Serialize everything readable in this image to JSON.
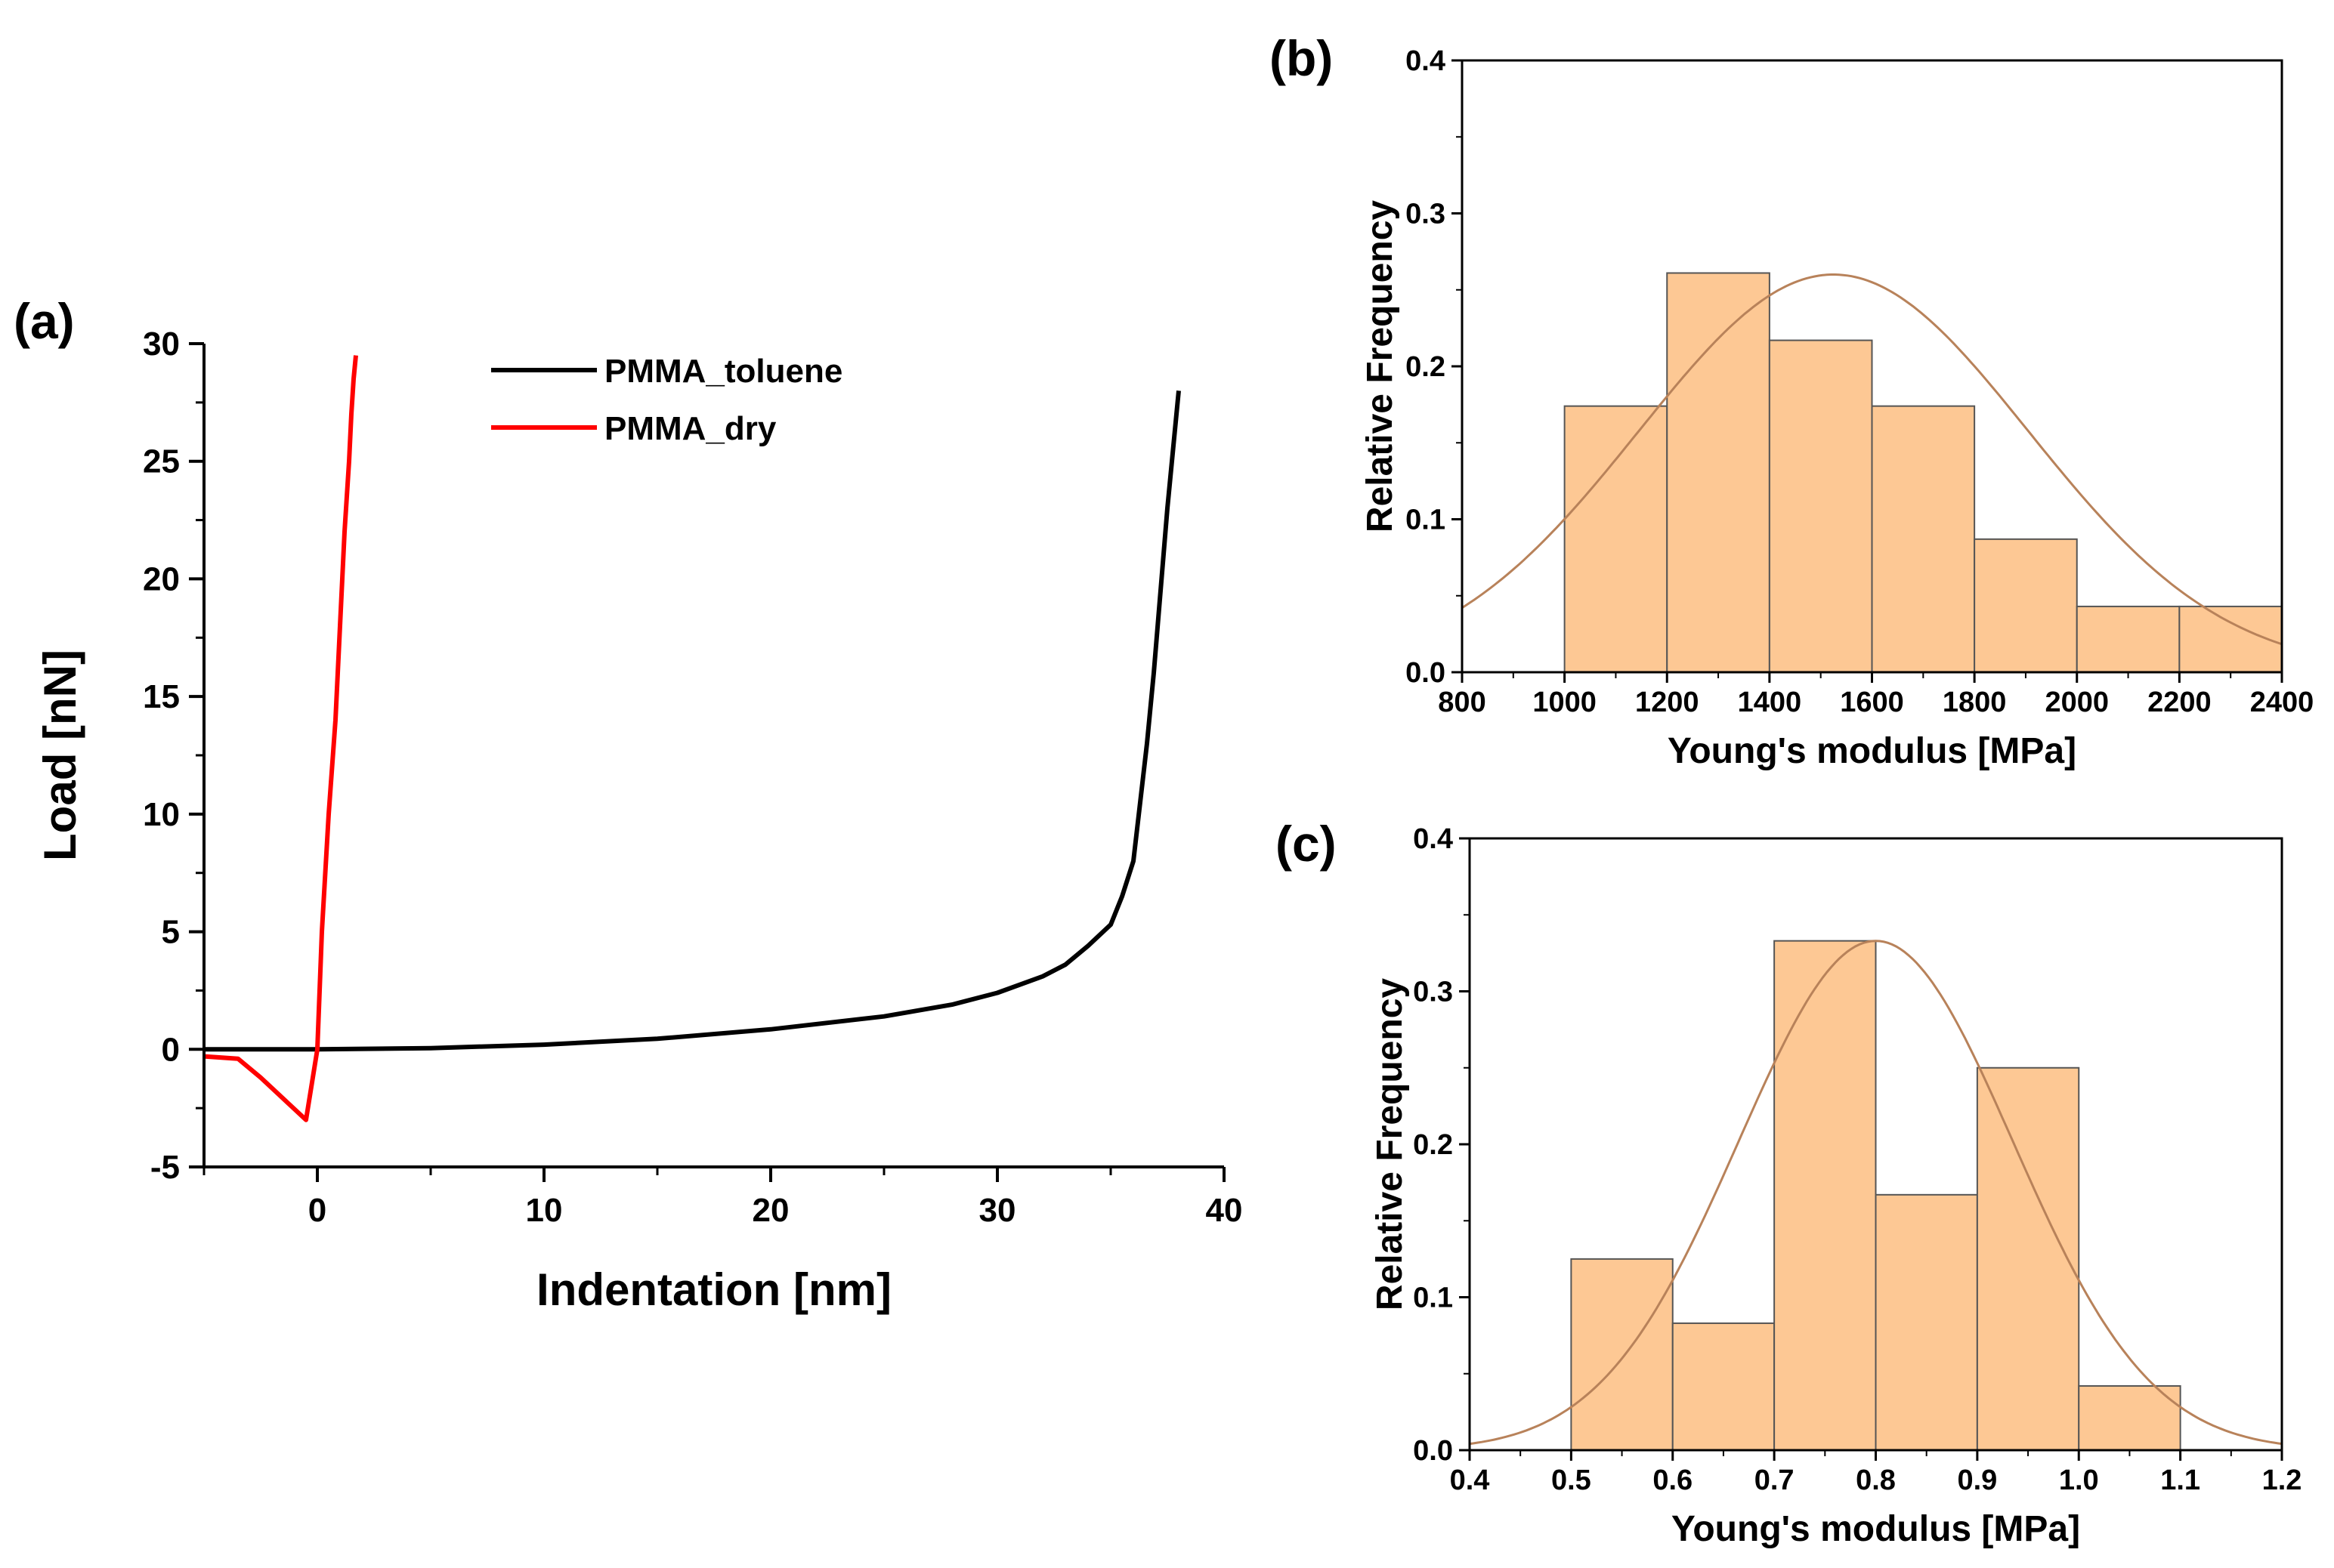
{
  "chart_data": [
    {
      "panel": "(a)",
      "type": "line",
      "title": "",
      "xlabel": "Indentation [nm]",
      "ylabel": "Load [nN]",
      "xlim": [
        -5,
        40
      ],
      "ylim": [
        -5,
        30
      ],
      "xticks": [
        0,
        10,
        20,
        30,
        40
      ],
      "yticks": [
        -5,
        0,
        5,
        10,
        15,
        20,
        25,
        30
      ],
      "legend_position": "top-center",
      "series": [
        {
          "name": "PMMA_toluene",
          "color": "#000000",
          "x": [
            -5,
            0,
            5,
            10,
            15,
            20,
            25,
            28,
            30,
            32,
            33,
            34,
            35,
            35.5,
            36,
            36.3,
            36.6,
            36.9,
            37.2,
            37.5,
            37.8,
            38.0
          ],
          "y": [
            0,
            0,
            0.05,
            0.2,
            0.45,
            0.85,
            1.4,
            1.9,
            2.4,
            3.1,
            3.6,
            4.4,
            5.3,
            6.5,
            8.0,
            10.5,
            13.0,
            16.0,
            19.5,
            23.0,
            26.0,
            28.0
          ]
        },
        {
          "name": "PMMA_dry",
          "color": "#ff0000",
          "x": [
            -5,
            -3.5,
            -2.5,
            -1.5,
            -0.5,
            0,
            0.2,
            0.5,
            0.8,
            1.0,
            1.2,
            1.4,
            1.5,
            1.6,
            1.7
          ],
          "y": [
            -0.3,
            -0.4,
            -1.2,
            -2.1,
            -3.0,
            0,
            5.0,
            10.0,
            14.0,
            18.0,
            22.0,
            25.0,
            27.0,
            28.5,
            29.5
          ]
        }
      ]
    },
    {
      "panel": "(b)",
      "type": "bar",
      "title": "",
      "xlabel": "Young's modulus [MPa]",
      "ylabel": "Relative Frequency",
      "xlim": [
        800,
        2400
      ],
      "ylim": [
        0.0,
        0.4
      ],
      "xticks": [
        800,
        1000,
        1200,
        1400,
        1600,
        1800,
        2000,
        2200,
        2400
      ],
      "yticks": [
        0.0,
        0.1,
        0.2,
        0.3,
        0.4
      ],
      "bin_edges": [
        1000,
        1200,
        1400,
        1600,
        1800,
        2000,
        2200,
        2400
      ],
      "values": [
        0.174,
        0.261,
        0.217,
        0.174,
        0.087,
        0.043,
        0.043
      ],
      "fit": {
        "type": "gaussian",
        "mean": 1525,
        "sigma": 380,
        "peak": 0.26
      }
    },
    {
      "panel": "(c)",
      "type": "bar",
      "title": "",
      "xlabel": "Young's modulus [MPa]",
      "ylabel": "Relative Frequency",
      "xlim": [
        0.4,
        1.2
      ],
      "ylim": [
        0.0,
        0.4
      ],
      "xticks": [
        0.4,
        0.5,
        0.6,
        0.7,
        0.8,
        0.9,
        1.0,
        1.1,
        1.2
      ],
      "yticks": [
        0.0,
        0.1,
        0.2,
        0.3,
        0.4
      ],
      "bin_edges": [
        0.5,
        0.6,
        0.7,
        0.8,
        0.9,
        1.0,
        1.1
      ],
      "values": [
        0.125,
        0.083,
        0.333,
        0.167,
        0.25,
        0.042
      ],
      "fit": {
        "type": "gaussian",
        "mean": 0.8,
        "sigma": 0.135,
        "peak": 0.333
      }
    }
  ],
  "colors": {
    "bar_fill": "#fdc894",
    "bar_stroke": "#555555",
    "fit_line": "#b8825a",
    "axis": "#000000"
  }
}
